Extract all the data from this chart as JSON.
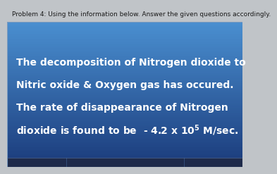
{
  "title_text": "Problem 4: Using the information below. Answer the given questions accordingly.",
  "title_fontsize": 6.5,
  "title_color": "#1a1a1a",
  "title_bg": "#c8ccd0",
  "box_bg_top": "#4a8fd0",
  "box_bg_bottom": "#1a3a7a",
  "main_text_line1": "The decomposition of Nitrogen dioxide to",
  "main_text_line2": "Nitric oxide & Oxygen gas has occured.",
  "main_text_line3": "The rate of disappearance of Nitrogen",
  "main_text_line4": "dioxide is found to be  - 4.2 x 10",
  "main_text_sup": "5",
  "main_text_end": " M/sec.",
  "main_text_color": "#ffffff",
  "main_fontsize": 10.0,
  "fig_bg": "#c0c4c8",
  "navy_bar_color": "#1e2a4a",
  "border_color": "#7a9abf"
}
